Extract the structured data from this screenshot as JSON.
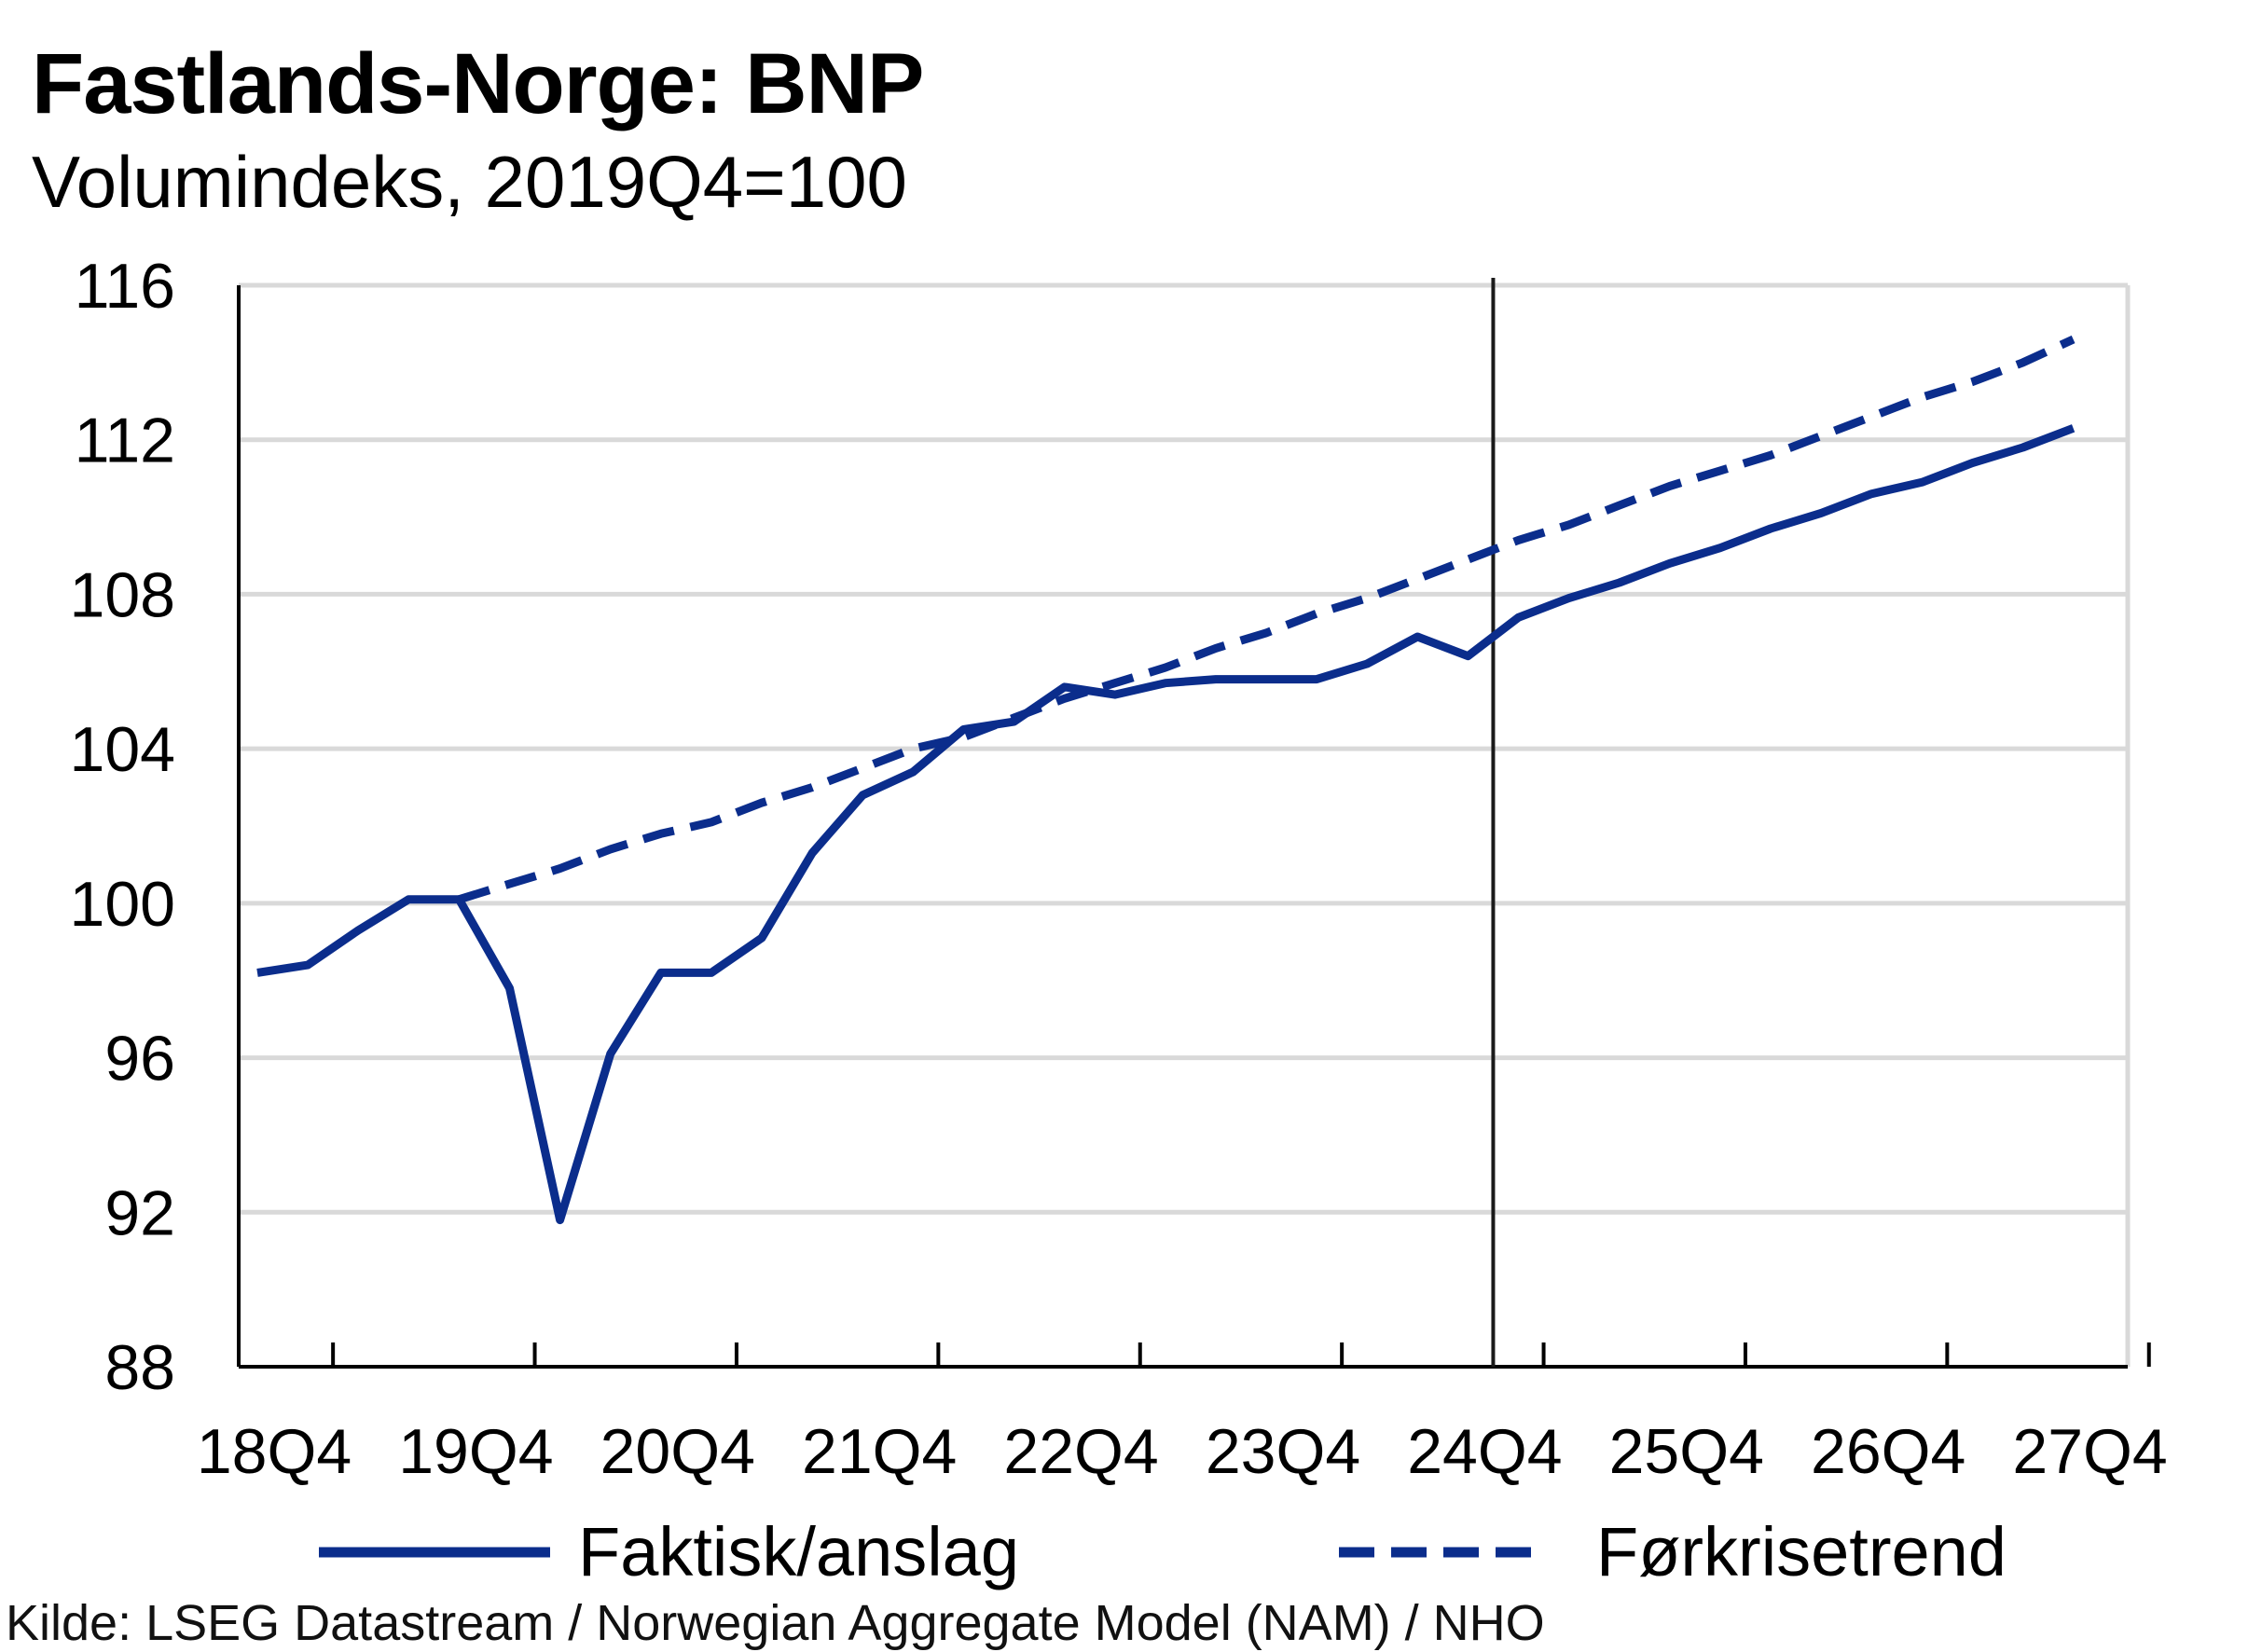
{
  "title": "Fastlands-Norge: BNP",
  "subtitle": "Volumindeks, 2019Q4=100",
  "source": "Kilde: LSEG Datastream / Norwegian Aggregate Model (NAM) / NHO",
  "colors": {
    "series": "#0b2d8c",
    "grid": "#d9d9d9",
    "axis": "#000000",
    "marker_line": "#1a1a1a"
  },
  "chart_data": {
    "type": "line",
    "x_start": "2018Q4",
    "x_tick_labels": [
      "18Q4",
      "19Q4",
      "20Q4",
      "21Q4",
      "22Q4",
      "23Q4",
      "24Q4",
      "25Q4",
      "26Q4",
      "27Q4"
    ],
    "ylim": [
      88,
      116
    ],
    "y_ticks": [
      88,
      92,
      96,
      100,
      104,
      108,
      112,
      116
    ],
    "grid": true,
    "forecast_start": "2025Q1",
    "legend_position": "bottom",
    "series": [
      {
        "name": "Faktisk/anslag",
        "style": "solid",
        "values": [
          98.2,
          98.4,
          99.3,
          100.1,
          100.1,
          97.8,
          91.8,
          96.1,
          98.2,
          98.2,
          99.1,
          101.3,
          102.8,
          103.4,
          104.5,
          104.7,
          105.6,
          105.4,
          105.7,
          105.8,
          105.8,
          105.8,
          106.2,
          106.9,
          106.4,
          107.4,
          107.9,
          108.3,
          108.8,
          109.2,
          109.7,
          110.1,
          110.6,
          110.9,
          111.4,
          111.8,
          112.3
        ]
      },
      {
        "name": "Førkrisetrend",
        "style": "dashed",
        "start_index": 4,
        "values": [
          100.1,
          100.5,
          100.9,
          101.4,
          101.8,
          102.1,
          102.6,
          103.0,
          103.5,
          104.0,
          104.3,
          104.8,
          105.3,
          105.7,
          106.1,
          106.6,
          107.0,
          107.5,
          107.9,
          108.4,
          108.9,
          109.4,
          109.8,
          110.3,
          110.8,
          111.2,
          111.6,
          112.1,
          112.6,
          113.1,
          113.5,
          114.0,
          114.6
        ]
      }
    ]
  }
}
